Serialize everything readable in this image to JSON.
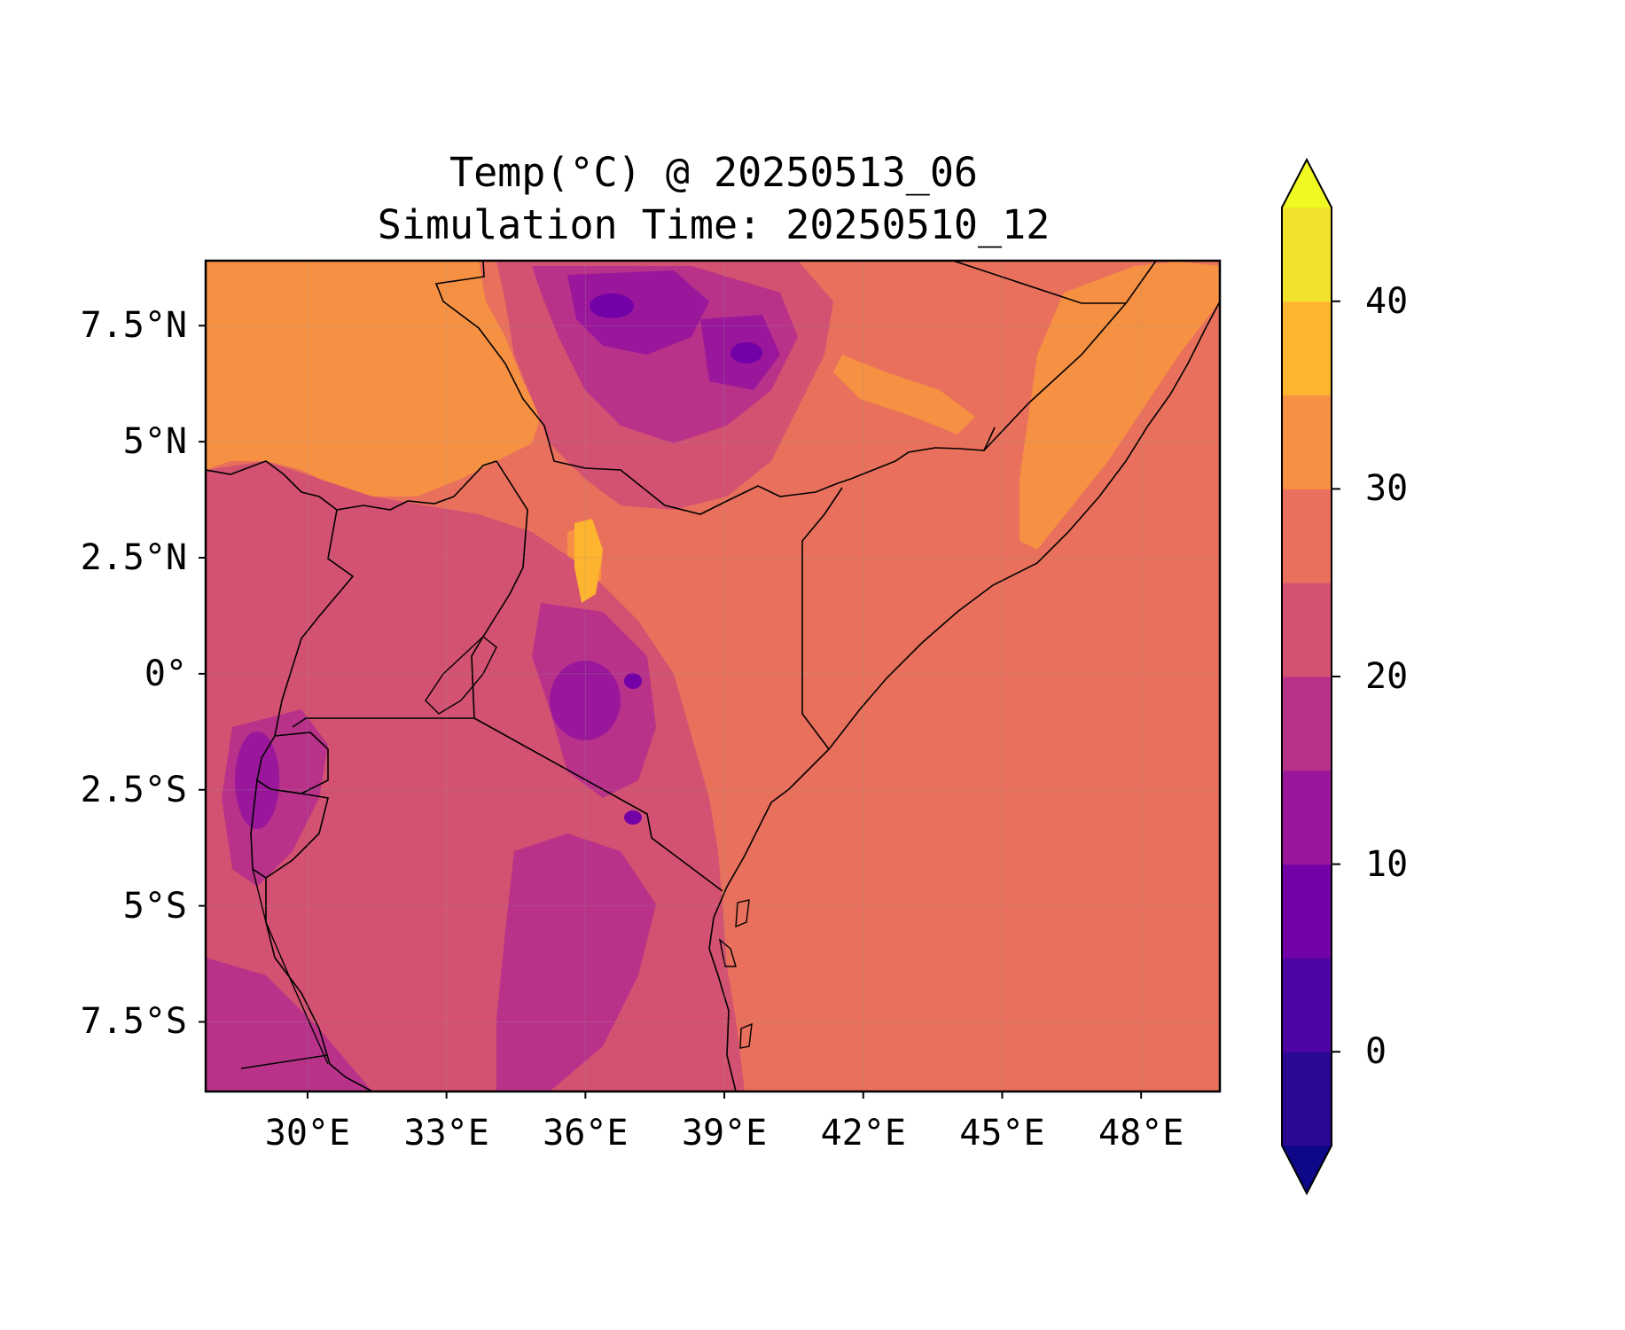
{
  "title": "Temp(°C) @ 20250513_06",
  "subtitle": "Simulation Time: 20250510_12",
  "map": {
    "extent_lon": [
      27.8,
      49.7
    ],
    "extent_lat": [
      -9.0,
      8.9
    ],
    "lon_ticks": [
      {
        "value": 30,
        "label": "30°E"
      },
      {
        "value": 33,
        "label": "33°E"
      },
      {
        "value": 36,
        "label": "36°E"
      },
      {
        "value": 39,
        "label": "39°E"
      },
      {
        "value": 42,
        "label": "42°E"
      },
      {
        "value": 45,
        "label": "45°E"
      },
      {
        "value": 48,
        "label": "48°E"
      }
    ],
    "lat_ticks": [
      {
        "value": 7.5,
        "label": "7.5°N"
      },
      {
        "value": 5,
        "label": "5°N"
      },
      {
        "value": 2.5,
        "label": "2.5°N"
      },
      {
        "value": 0,
        "label": "0°"
      },
      {
        "value": -2.5,
        "label": "2.5°S"
      },
      {
        "value": -5,
        "label": "5°S"
      },
      {
        "value": -7.5,
        "label": "7.5°S"
      }
    ]
  },
  "colorbar": {
    "levels": [
      -5,
      0,
      5,
      10,
      15,
      20,
      25,
      30,
      35,
      40,
      45
    ],
    "colors": [
      "#2a0893",
      "#4e05a3",
      "#7301a8",
      "#9a179b",
      "#b83289",
      "#d35171",
      "#e8705c",
      "#f69043",
      "#fdb42f",
      "#f3e12b"
    ],
    "under_color": "#0d0887",
    "over_color": "#f0f921",
    "tick_labels": [
      {
        "value": 0,
        "label": "0"
      },
      {
        "value": 10,
        "label": "10"
      },
      {
        "value": 20,
        "label": "20"
      },
      {
        "value": 30,
        "label": "30"
      },
      {
        "value": 40,
        "label": "40"
      }
    ]
  },
  "colors": {
    "ocean": "#e8705c",
    "warm": "#f69043",
    "mild": "#d35171",
    "cool": "#b83289",
    "cold": "#9a179b",
    "very_cold": "#7301a8",
    "hot": "#fdb42f"
  }
}
